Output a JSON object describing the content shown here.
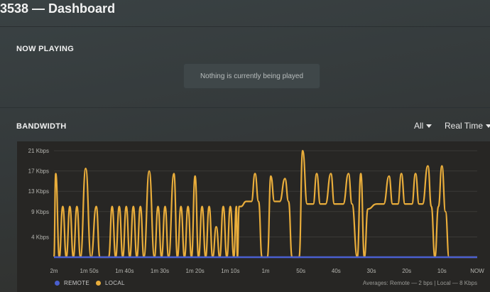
{
  "header": {
    "title": "3538 — Dashboard"
  },
  "now_playing": {
    "heading": "NOW PLAYING",
    "empty_message": "Nothing is currently being played"
  },
  "bandwidth": {
    "heading": "BANDWIDTH",
    "filter_label": "All",
    "timespan_label": "Real Time",
    "legend": {
      "remote": "REMOTE",
      "local": "LOCAL"
    },
    "averages_text": "Averages: Remote — 2 bps | Local — 8 Kbps"
  },
  "colors": {
    "remote": "#4a5fd0",
    "local": "#e9ad3b",
    "background": "#34393a",
    "chart_bg": "#272624"
  },
  "chart_data": {
    "type": "line",
    "ytick_labels": [
      "4 Kbps",
      "9 Kbps",
      "13 Kbps",
      "17 Kbps",
      "21 Kbps"
    ],
    "yticks": [
      4,
      9,
      13,
      17,
      21
    ],
    "ylim": [
      0,
      22
    ],
    "x_seconds_ago": [
      120,
      110,
      100,
      90,
      80,
      70,
      60,
      50,
      40,
      30,
      20,
      10,
      0
    ],
    "xtick_labels": [
      "2m",
      "1m 50s",
      "1m 40s",
      "1m 30s",
      "1m 20s",
      "1m 10s",
      "1m",
      "50s",
      "40s",
      "30s",
      "20s",
      "10s",
      "NOW"
    ],
    "grid": true,
    "series": [
      {
        "name": "REMOTE",
        "values": [
          0.002,
          0.002,
          0.002,
          0.002,
          0.002,
          0.002,
          0.002,
          0.002,
          0.002,
          0.002,
          0.002,
          0.002,
          0.002
        ]
      },
      {
        "name": "LOCAL",
        "points": [
          [
            120,
            0
          ],
          [
            119.5,
            16.5
          ],
          [
            118.5,
            0
          ],
          [
            117.5,
            10
          ],
          [
            116.5,
            0
          ],
          [
            115.5,
            10
          ],
          [
            114.5,
            0
          ],
          [
            113.5,
            10
          ],
          [
            112.5,
            0
          ],
          [
            111,
            17.5
          ],
          [
            109.5,
            0
          ],
          [
            108,
            10
          ],
          [
            107,
            0
          ],
          [
            104.5,
            0
          ],
          [
            103.5,
            10
          ],
          [
            102.5,
            0
          ],
          [
            101.5,
            10
          ],
          [
            100.5,
            0
          ],
          [
            99.5,
            10
          ],
          [
            98.5,
            0
          ],
          [
            97.5,
            10
          ],
          [
            96.5,
            0
          ],
          [
            95.5,
            10
          ],
          [
            94.5,
            0
          ],
          [
            93,
            17
          ],
          [
            91.5,
            0
          ],
          [
            90.5,
            10
          ],
          [
            89.5,
            0
          ],
          [
            88.5,
            10
          ],
          [
            87.5,
            0
          ],
          [
            86,
            16.5
          ],
          [
            85,
            0
          ],
          [
            84,
            10
          ],
          [
            83,
            0
          ],
          [
            82,
            10
          ],
          [
            81,
            0
          ],
          [
            80,
            16
          ],
          [
            79,
            0
          ],
          [
            78,
            10
          ],
          [
            77,
            0
          ],
          [
            76,
            10
          ],
          [
            75,
            0
          ],
          [
            74,
            6
          ],
          [
            73,
            0
          ],
          [
            72,
            10
          ],
          [
            71,
            0
          ],
          [
            70,
            10
          ],
          [
            69,
            0
          ],
          [
            68.3,
            10
          ],
          [
            68,
            0
          ],
          [
            67.5,
            10
          ],
          [
            67,
            10
          ],
          [
            65.5,
            11
          ],
          [
            64,
            11
          ],
          [
            63,
            16.5
          ],
          [
            62,
            11
          ],
          [
            61,
            0
          ],
          [
            59.5,
            0
          ],
          [
            58.5,
            16
          ],
          [
            57.5,
            11
          ],
          [
            56,
            11
          ],
          [
            54.5,
            15.5
          ],
          [
            53.5,
            11
          ],
          [
            52.5,
            0
          ],
          [
            50.5,
            0
          ],
          [
            49.5,
            21
          ],
          [
            48.2,
            10.5
          ],
          [
            46.5,
            10.5
          ],
          [
            45.5,
            16.5
          ],
          [
            44.5,
            10.5
          ],
          [
            43,
            10.5
          ],
          [
            41.5,
            16.5
          ],
          [
            40.5,
            10.5
          ],
          [
            38,
            10.5
          ],
          [
            36.5,
            16.5
          ],
          [
            35.5,
            10.5
          ],
          [
            34,
            0
          ],
          [
            33,
            16.5
          ],
          [
            32,
            0
          ],
          [
            31,
            9.5
          ],
          [
            28.5,
            10.5
          ],
          [
            26.5,
            10.5
          ],
          [
            25,
            16
          ],
          [
            24,
            10.5
          ],
          [
            22.5,
            10.5
          ],
          [
            21.5,
            16.5
          ],
          [
            20.5,
            10.5
          ],
          [
            18.5,
            10.5
          ],
          [
            17.5,
            16.5
          ],
          [
            16.5,
            10.5
          ],
          [
            15.5,
            10.5
          ],
          [
            14,
            18
          ],
          [
            13,
            10
          ],
          [
            12,
            0
          ],
          [
            11,
            10
          ],
          [
            10,
            18
          ],
          [
            9,
            9
          ],
          [
            8,
            0
          ],
          [
            0,
            0
          ]
        ]
      }
    ]
  }
}
